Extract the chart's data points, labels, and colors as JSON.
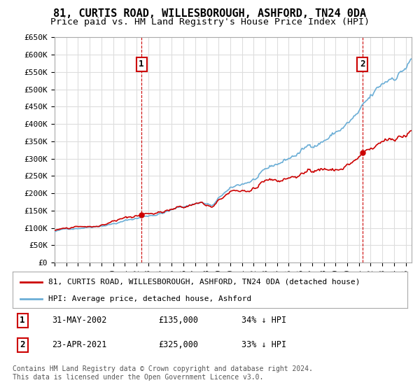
{
  "title": "81, CURTIS ROAD, WILLESBOROUGH, ASHFORD, TN24 0DA",
  "subtitle": "Price paid vs. HM Land Registry's House Price Index (HPI)",
  "title_fontsize": 11,
  "subtitle_fontsize": 9.5,
  "background_color": "#ffffff",
  "grid_color": "#dddddd",
  "hpi_color": "#6baed6",
  "price_color": "#cc0000",
  "annotation1_date": "31-MAY-2002",
  "annotation1_price": 135000,
  "annotation1_label": "34% ↓ HPI",
  "annotation2_date": "23-APR-2021",
  "annotation2_price": 325000,
  "annotation2_label": "33% ↓ HPI",
  "legend_label_price": "81, CURTIS ROAD, WILLESBOROUGH, ASHFORD, TN24 0DA (detached house)",
  "legend_label_hpi": "HPI: Average price, detached house, Ashford",
  "footer": "Contains HM Land Registry data © Crown copyright and database right 2024.\nThis data is licensed under the Open Government Licence v3.0.",
  "ylim": [
    0,
    650000
  ],
  "yticks": [
    0,
    50000,
    100000,
    150000,
    200000,
    250000,
    300000,
    350000,
    400000,
    450000,
    500000,
    550000,
    600000,
    650000
  ],
  "ytick_labels": [
    "£0",
    "£50K",
    "£100K",
    "£150K",
    "£200K",
    "£250K",
    "£300K",
    "£350K",
    "£400K",
    "£450K",
    "£500K",
    "£550K",
    "£600K",
    "£650K"
  ],
  "xlim_start": 1995.0,
  "xlim_end": 2025.5,
  "transaction1_x": 2002.42,
  "transaction2_x": 2021.31
}
